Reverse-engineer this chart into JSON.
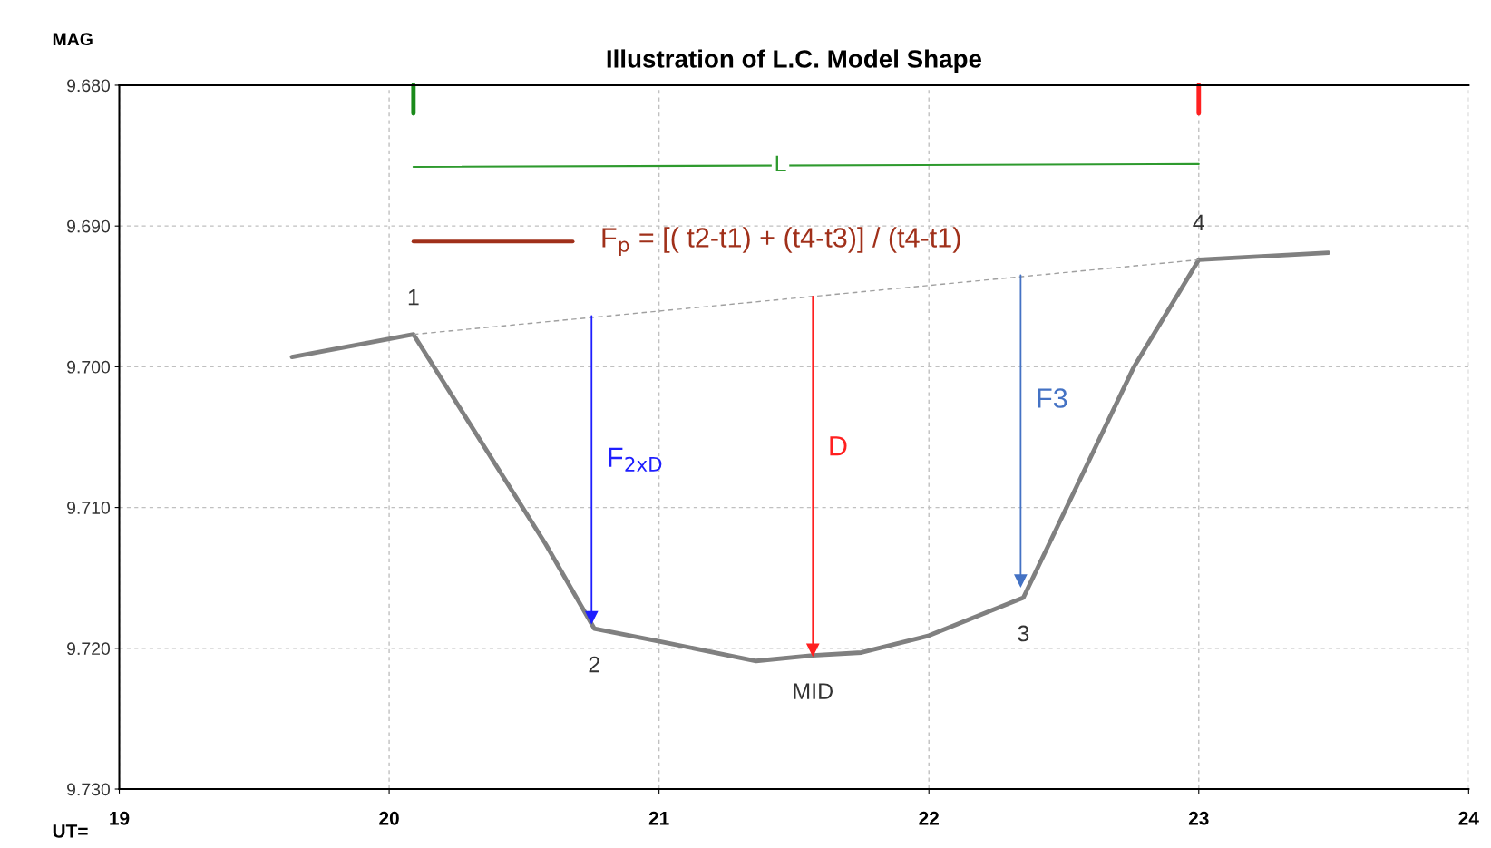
{
  "chart_data": {
    "type": "line",
    "title": "Illustration of L.C. Model Shape",
    "xlabel": "UT=",
    "ylabel": "MAG",
    "xlim": [
      19,
      24
    ],
    "xticks": [
      19,
      20,
      21,
      22,
      23,
      24
    ],
    "ylim": [
      9.73,
      9.68
    ],
    "yticks": [
      {
        "value": 9.68,
        "label": "9.680"
      },
      {
        "value": 9.69,
        "label": "9.690"
      },
      {
        "value": 9.7,
        "label": "9.700"
      },
      {
        "value": 9.71,
        "label": "9.710"
      },
      {
        "value": 9.72,
        "label": "9.720"
      },
      {
        "value": 9.73,
        "label": "9.730"
      }
    ],
    "grid": true,
    "series": [
      {
        "color": "#808080",
        "x": [
          19.64,
          20.09,
          20.58,
          20.76,
          21.0,
          21.36,
          21.57,
          21.75,
          22.0,
          22.35,
          22.76,
          23.0,
          23.48
        ],
        "values": [
          9.6993,
          9.6977,
          9.7126,
          9.7186,
          9.7195,
          9.7209,
          9.7205,
          9.7203,
          9.7191,
          9.7164,
          9.7,
          9.6924,
          9.6919
        ]
      },
      {
        "color": "#a0a0a0",
        "line_style": "dashed",
        "x": [
          20.09,
          23.0
        ],
        "values": [
          9.6977,
          9.6924
        ]
      },
      {
        "color": "#1a8a1a",
        "x": [
          20.09,
          20.09
        ],
        "values": [
          9.68,
          9.682
        ]
      },
      {
        "color": "#ff2020",
        "x": [
          23.0,
          23.0
        ],
        "values": [
          9.68,
          9.682
        ]
      },
      {
        "color": "#2e9a2e",
        "x": [
          20.09,
          23.0
        ],
        "values": [
          9.6858,
          9.6856
        ]
      },
      {
        "color": "#a0301a",
        "x": [
          20.09,
          20.68
        ],
        "values": [
          9.6911,
          9.6911
        ]
      },
      {
        "color": "#1f1fff",
        "marker": "triangle",
        "x": [
          20.75,
          20.75
        ],
        "values": [
          9.6964,
          9.7178
        ]
      },
      {
        "color": "#ff2020",
        "marker": "triangle",
        "x": [
          21.57,
          21.57
        ],
        "values": [
          9.695,
          9.7201
        ]
      },
      {
        "color": "#4472c4",
        "marker": "triangle",
        "x": [
          22.34,
          22.34
        ],
        "values": [
          9.6935,
          9.7152
        ]
      }
    ],
    "annotations": [
      {
        "text": "1",
        "x": 20.09,
        "y": 9.6977
      },
      {
        "text": "2",
        "x": 20.76,
        "y": 9.7186
      },
      {
        "text": "3",
        "x": 22.35,
        "y": 9.7164
      },
      {
        "text": "4",
        "x": 23.0,
        "y": 9.6924
      },
      {
        "text": "MID",
        "x": 21.57,
        "y": 9.7205
      },
      {
        "text": "L",
        "x": 21.45,
        "y": 9.6857
      },
      {
        "text": "D",
        "x": 21.57,
        "y": 9.7058
      },
      {
        "text": "F3",
        "x": 22.34,
        "y": 9.7024
      },
      {
        "text": "F$_{2xD}$",
        "x": 20.75,
        "y": 9.7066
      },
      {
        "text": "F$_{p}$ = [( t2-t1) + (t4-t3)] / (t4-t1)",
        "x": 20.68,
        "y": 9.6911
      }
    ]
  }
}
